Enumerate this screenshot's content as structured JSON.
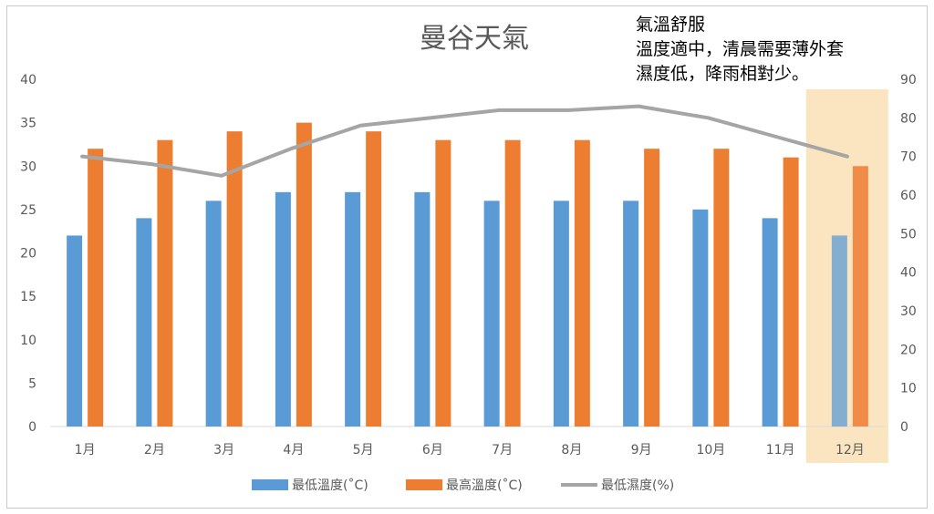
{
  "chart_data": {
    "type": "bar",
    "title": "曼谷天氣",
    "categories": [
      "1月",
      "2月",
      "3月",
      "4月",
      "5月",
      "6月",
      "7月",
      "8月",
      "9月",
      "10月",
      "11月",
      "12月"
    ],
    "series": [
      {
        "name": "最低溫度(˚C)",
        "kind": "bar",
        "axis": "left",
        "color": "#5b9bd5",
        "values": [
          22,
          24,
          26,
          27,
          27,
          27,
          26,
          26,
          26,
          25,
          24,
          22
        ]
      },
      {
        "name": "最高溫度(˚C)",
        "kind": "bar",
        "axis": "left",
        "color": "#ed7d31",
        "values": [
          32,
          33,
          34,
          35,
          34,
          33,
          33,
          33,
          32,
          32,
          31,
          30
        ]
      },
      {
        "name": "最低濕度(%)",
        "kind": "line",
        "axis": "right",
        "color": "#a5a5a5",
        "values": [
          70,
          68,
          65,
          72,
          78,
          80,
          82,
          82,
          83,
          80,
          75,
          70
        ]
      }
    ],
    "y_left": {
      "min": 0,
      "max": 40,
      "step": 5
    },
    "y_right": {
      "min": 0,
      "max": 90,
      "step": 10
    },
    "highlight": {
      "category": "12月",
      "color": "#fbe5c0"
    },
    "annotation": [
      "氣溫舒服",
      "溫度適中，清晨需要薄外套",
      "濕度低，降雨相對少。"
    ],
    "legend_position": "bottom",
    "grid": false
  }
}
